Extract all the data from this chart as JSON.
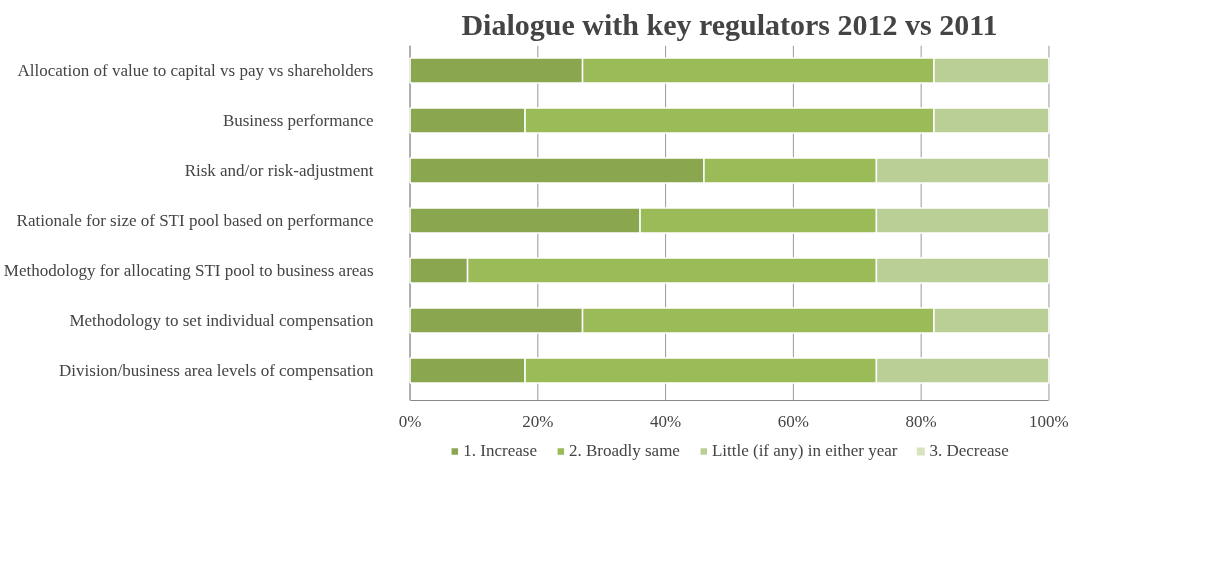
{
  "chart_data": {
    "type": "bar",
    "orientation": "horizontal",
    "stacked": true,
    "title": "Dialogue with key regulators 2012 vs 2011",
    "categories": [
      "Allocation of value to capital vs pay vs shareholders",
      "Business performance",
      "Risk and/or risk-adjustment",
      "Rationale for size of STI pool based on performance",
      "Methodology for allocating STI pool to business areas",
      "Methodology to set individual compensation",
      "Division/business area levels of compensation"
    ],
    "series": [
      {
        "name": "1. Increase",
        "color": "#8aa64f",
        "values": [
          27,
          18,
          46,
          36,
          9,
          27,
          18
        ]
      },
      {
        "name": "2. Broadly same",
        "color": "#9bbb59",
        "values": [
          55,
          64,
          27,
          37,
          64,
          55,
          55
        ]
      },
      {
        "name": "Little (if any) in either year",
        "color": "#b9cf96",
        "values": [
          18,
          18,
          27,
          27,
          27,
          18,
          27
        ]
      },
      {
        "name": "3. Decrease",
        "color": "#d7e4bd",
        "values": [
          0,
          0,
          0,
          0,
          0,
          0,
          0
        ]
      }
    ],
    "xlim": [
      0,
      100
    ],
    "xticks": [
      {
        "value": 0,
        "label": "0%"
      },
      {
        "value": 20,
        "label": "20%"
      },
      {
        "value": 40,
        "label": "40%"
      },
      {
        "value": 60,
        "label": "60%"
      },
      {
        "value": 80,
        "label": "80%"
      },
      {
        "value": 100,
        "label": "100%"
      }
    ],
    "grid": "x",
    "legend": "bottom"
  }
}
